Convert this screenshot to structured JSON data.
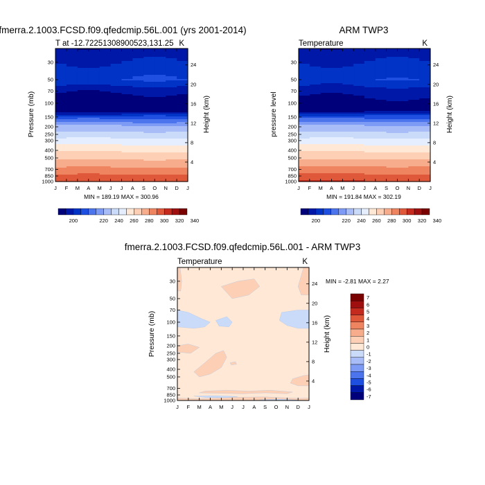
{
  "palette": [
    "#00007a",
    "#0018a8",
    "#0033c6",
    "#1f4fe0",
    "#4c74ec",
    "#7d9bf4",
    "#a8bcf8",
    "#cadaf9",
    "#e4eefe",
    "#ffe8d6",
    "#fdd0b6",
    "#f7ad8c",
    "#ef8560",
    "#e0583a",
    "#c42b1e",
    "#a00f0f",
    "#7a0000"
  ],
  "months": [
    "J",
    "F",
    "M",
    "A",
    "M",
    "J",
    "J",
    "A",
    "S",
    "O",
    "N",
    "D",
    "J"
  ],
  "pressure_ticks": [
    {
      "label": "30",
      "value": 30
    },
    {
      "label": "50",
      "value": 50
    },
    {
      "label": "70",
      "value": 70
    },
    {
      "label": "100",
      "value": 100
    },
    {
      "label": "150",
      "value": 150
    },
    {
      "label": "200",
      "value": 200
    },
    {
      "label": "250",
      "value": 250
    },
    {
      "label": "300",
      "value": 300
    },
    {
      "label": "400",
      "value": 400
    },
    {
      "label": "500",
      "value": 500
    },
    {
      "label": "700",
      "value": 700
    },
    {
      "label": "850",
      "value": 850
    },
    {
      "label": "1000",
      "value": 1000
    }
  ],
  "height_ticks": [
    {
      "label": "24",
      "value": 24
    },
    {
      "label": "20",
      "value": 20
    },
    {
      "label": "16",
      "value": 16
    },
    {
      "label": "12",
      "value": 12
    },
    {
      "label": "8",
      "value": 8
    },
    {
      "label": "4",
      "value": 4
    }
  ],
  "colorbar_main": {
    "tick_labels": [
      "200",
      "220",
      "240",
      "260",
      "280",
      "300",
      "320",
      "340"
    ],
    "tick_values": [
      200,
      220,
      240,
      260,
      280,
      300,
      320,
      340
    ],
    "levels": [
      195,
      200,
      205,
      210,
      215,
      220,
      230,
      240,
      250,
      260,
      270,
      280,
      290,
      300,
      310,
      320,
      330,
      340
    ]
  },
  "colorbar_diff": {
    "labels": [
      "7",
      "6",
      "5",
      "4",
      "3",
      "2",
      "1",
      "0",
      "-1",
      "-2",
      "-3",
      "-4",
      "-5",
      "-6",
      "-7"
    ],
    "colors": [
      "#7a0000",
      "#a00f0f",
      "#c42b1e",
      "#e0583a",
      "#ef8560",
      "#f7ad8c",
      "#fdd0b6",
      "#ffe8d6",
      "#cadaf9",
      "#a8bcf8",
      "#7d9bf4",
      "#4c74ec",
      "#1f4fe0",
      "#0018a8",
      "#00007a"
    ]
  },
  "chart_data": [
    {
      "type": "heatmap",
      "title": "fmerra.2.1003.FCSD.f09.qfedcmip.56L.001 (yrs 2001-2014)",
      "left_label": "T at -12.72251308900523,131.25",
      "units_label": "K",
      "ylabel": "Pressure (mb)",
      "right_ylabel": "Height (km)",
      "stats": "MIN = 189.19 MAX = 300.96",
      "x": "months J..J",
      "y_range_mb": [
        20,
        1000
      ],
      "profile": [
        {
          "p": 20,
          "v": 196
        },
        {
          "p": 30,
          "v": 200
        },
        {
          "p": 50,
          "v": 205
        },
        {
          "p": 70,
          "v": 196
        },
        {
          "p": 100,
          "v": 191
        },
        {
          "p": 125,
          "v": 191
        },
        {
          "p": 150,
          "v": 207
        },
        {
          "p": 200,
          "v": 222
        },
        {
          "p": 250,
          "v": 234
        },
        {
          "p": 300,
          "v": 244
        },
        {
          "p": 400,
          "v": 258
        },
        {
          "p": 500,
          "v": 268
        },
        {
          "p": 600,
          "v": 276
        },
        {
          "p": 700,
          "v": 283
        },
        {
          "p": 850,
          "v": 292
        },
        {
          "p": 1000,
          "v": 300
        }
      ]
    },
    {
      "type": "heatmap",
      "title": "ARM TWP3",
      "left_label": "Temperature",
      "units_label": "K",
      "ylabel": "pressure level",
      "right_ylabel": "Height (km)",
      "stats": "MIN = 191.84 MAX = 302.19",
      "x": "months J..J",
      "y_range_mb": [
        20,
        1000
      ],
      "profile": [
        {
          "p": 20,
          "v": 196
        },
        {
          "p": 30,
          "v": 200
        },
        {
          "p": 50,
          "v": 204
        },
        {
          "p": 70,
          "v": 197
        },
        {
          "p": 100,
          "v": 193
        },
        {
          "p": 125,
          "v": 193
        },
        {
          "p": 150,
          "v": 208
        },
        {
          "p": 200,
          "v": 222
        },
        {
          "p": 250,
          "v": 234
        },
        {
          "p": 300,
          "v": 244
        },
        {
          "p": 400,
          "v": 258
        },
        {
          "p": 500,
          "v": 268
        },
        {
          "p": 600,
          "v": 277
        },
        {
          "p": 700,
          "v": 284
        },
        {
          "p": 850,
          "v": 293
        },
        {
          "p": 1000,
          "v": 301
        }
      ]
    },
    {
      "type": "heatmap",
      "title": "fmerra.2.1003.FCSD.f09.qfedcmip.56L.001 - ARM TWP3",
      "left_label": "Temperature",
      "units_label": "K",
      "ylabel": "Pressure (mb)",
      "right_ylabel": "Height (km)",
      "stats": "MIN =  -2.81 MAX =   2.27",
      "x": "months J..J",
      "y_range_mb": [
        20,
        1000
      ],
      "background_value": -0.5,
      "patches": [
        {
          "value": 0.5,
          "points": [
            [
              0,
              20
            ],
            [
              0.25,
              20
            ],
            [
              0.4,
              30
            ],
            [
              0.3,
              40
            ],
            [
              0,
              40
            ]
          ]
        },
        {
          "value": 0.5,
          "points": [
            [
              4.0,
              35
            ],
            [
              5.5,
              30
            ],
            [
              7.0,
              28
            ],
            [
              7.5,
              35
            ],
            [
              6.5,
              45
            ],
            [
              5.0,
              50
            ]
          ]
        },
        {
          "value": 0.5,
          "points": [
            [
              11.5,
              20
            ],
            [
              12,
              20
            ],
            [
              12,
              45
            ],
            [
              11.3,
              45
            ],
            [
              11.0,
              35
            ]
          ]
        },
        {
          "value": -1.5,
          "points": [
            [
              0,
              70
            ],
            [
              1,
              75
            ],
            [
              2.2,
              90
            ],
            [
              3.0,
              100
            ],
            [
              2.5,
              115
            ],
            [
              1.5,
              120
            ],
            [
              0,
              115
            ]
          ]
        },
        {
          "value": -1.5,
          "points": [
            [
              3.5,
              95
            ],
            [
              4.5,
              85
            ],
            [
              5.0,
              100
            ],
            [
              4.7,
              115
            ],
            [
              3.8,
              112
            ]
          ]
        },
        {
          "value": -1.5,
          "points": [
            [
              9.5,
              75
            ],
            [
              11,
              70
            ],
            [
              12,
              70
            ],
            [
              12,
              120
            ],
            [
              11,
              120
            ],
            [
              10,
              110
            ],
            [
              9.3,
              95
            ]
          ]
        },
        {
          "value": 0.5,
          "points": [
            [
              1.5,
              430
            ],
            [
              2.5,
              330
            ],
            [
              3.5,
              250
            ],
            [
              4.2,
              230
            ],
            [
              4.5,
              280
            ],
            [
              4.0,
              380
            ],
            [
              3.0,
              460
            ],
            [
              2.0,
              500
            ]
          ]
        },
        {
          "value": 0.5,
          "points": [
            [
              0,
              200
            ],
            [
              1,
              190
            ],
            [
              2,
              210
            ],
            [
              1.2,
              250
            ],
            [
              0,
              240
            ]
          ]
        },
        {
          "value": 0.5,
          "points": [
            [
              4.8,
              330
            ],
            [
              5.3,
              320
            ],
            [
              5.4,
              345
            ],
            [
              4.9,
              350
            ]
          ]
        },
        {
          "value": 0.5,
          "points": [
            [
              10.5,
              530
            ],
            [
              11.5,
              480
            ],
            [
              12,
              470
            ],
            [
              12,
              650
            ],
            [
              11.0,
              650
            ],
            [
              10.3,
              600
            ]
          ]
        },
        {
          "value": 0.5,
          "points": [
            [
              2.5,
              760
            ],
            [
              4.5,
              740
            ],
            [
              6.5,
              760
            ],
            [
              8.5,
              740
            ],
            [
              10.5,
              780
            ],
            [
              10.0,
              820
            ],
            [
              8.0,
              800
            ],
            [
              6.0,
              820
            ],
            [
              4.0,
              810
            ],
            [
              2.0,
              800
            ]
          ]
        },
        {
          "value": 0.5,
          "points": [
            [
              0,
              930
            ],
            [
              2,
              950
            ],
            [
              5,
              910
            ],
            [
              8,
              900
            ],
            [
              11,
              940
            ],
            [
              12,
              930
            ],
            [
              12,
              1000
            ],
            [
              0,
              1000
            ]
          ]
        },
        {
          "value": -1.5,
          "points": [
            [
              1.5,
              880
            ],
            [
              3.5,
              870
            ],
            [
              5.5,
              890
            ],
            [
              4.5,
              920
            ],
            [
              2.5,
              915
            ]
          ]
        },
        {
          "value": -1.5,
          "points": [
            [
              7.5,
              980
            ],
            [
              9.5,
              960
            ],
            [
              11,
              990
            ],
            [
              9.5,
              1000
            ],
            [
              7.5,
              1000
            ]
          ]
        }
      ]
    }
  ]
}
